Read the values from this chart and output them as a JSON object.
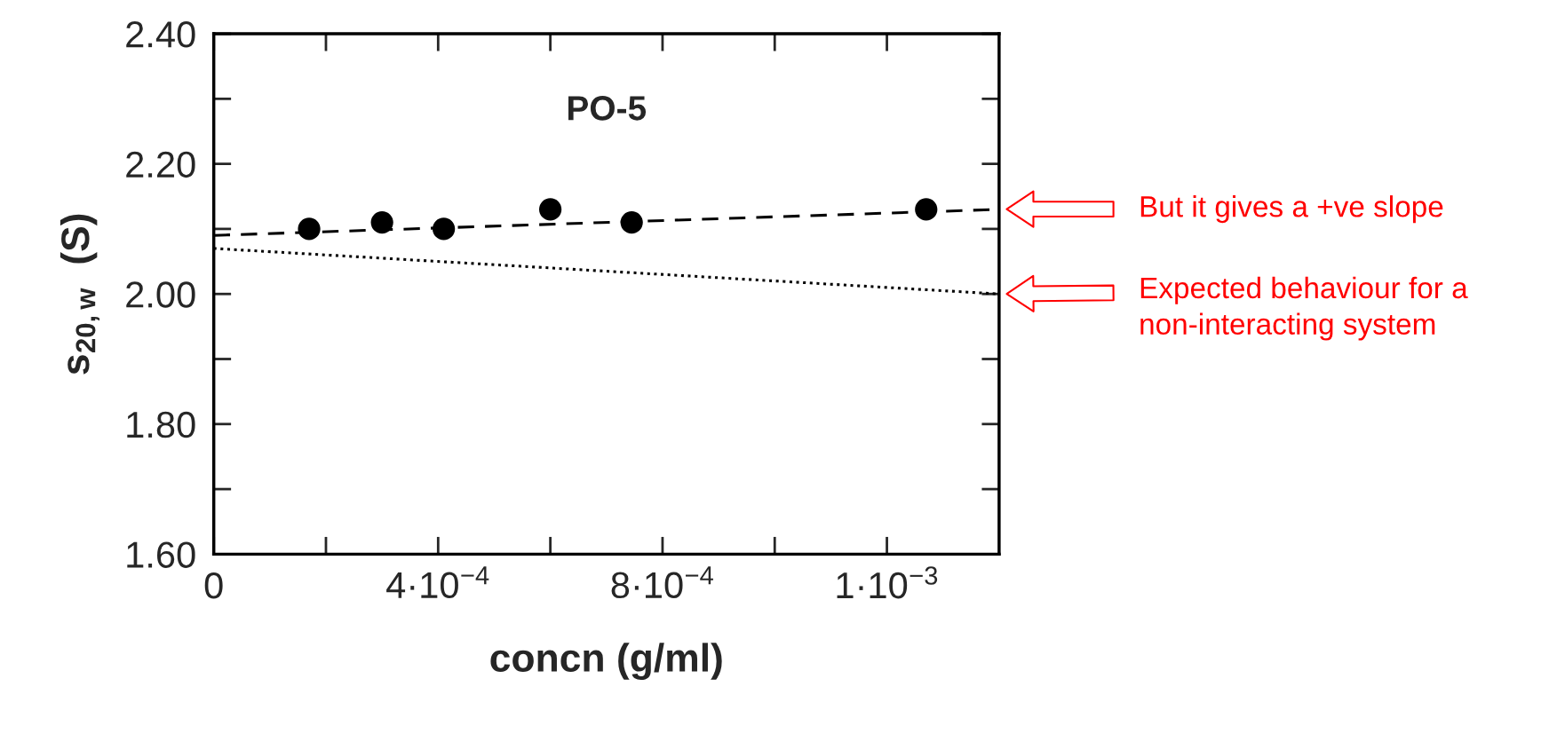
{
  "chart_data": {
    "type": "scatter",
    "title": "PO-5",
    "xlabel": "concn (g/ml)",
    "ylabel": "s$_{20,w}$  (S)",
    "xlim": [
      0,
      0.0014
    ],
    "ylim": [
      1.6,
      2.4
    ],
    "xticks": [
      {
        "value": 0,
        "label": "0"
      },
      {
        "value": 0.0004,
        "label": "4·10$^{−4}$"
      },
      {
        "value": 0.0008,
        "label": "8·10$^{−4}$"
      },
      {
        "value": 0.0012,
        "label": "1·10$^{−3}$"
      }
    ],
    "yticks": [
      {
        "value": 1.6,
        "label": "1.60"
      },
      {
        "value": 1.8,
        "label": "1.80"
      },
      {
        "value": 2.0,
        "label": "2.00"
      },
      {
        "value": 2.2,
        "label": "2.20"
      },
      {
        "value": 2.4,
        "label": "2.40"
      }
    ],
    "grid": false,
    "legend": false,
    "series": [
      {
        "color": "#000000",
        "marker": "circle",
        "x": [
          0.00017,
          0.0003,
          0.00041,
          0.0006,
          0.000745,
          0.00127
        ],
        "values": [
          2.1,
          2.11,
          2.1,
          2.13,
          2.11,
          2.13
        ]
      },
      {
        "type": "line",
        "color": "#000000",
        "line_style": "dashed",
        "x": [
          0,
          0.0014
        ],
        "values": [
          2.09,
          2.13
        ]
      },
      {
        "type": "line",
        "color": "#000000",
        "line_style": "dotted",
        "x": [
          0,
          0.0014
        ],
        "values": [
          2.07,
          2.0
        ]
      }
    ],
    "annotations": [
      "But it gives a +ve slope",
      "Expected behaviour for a\nnon-interacting system"
    ]
  }
}
